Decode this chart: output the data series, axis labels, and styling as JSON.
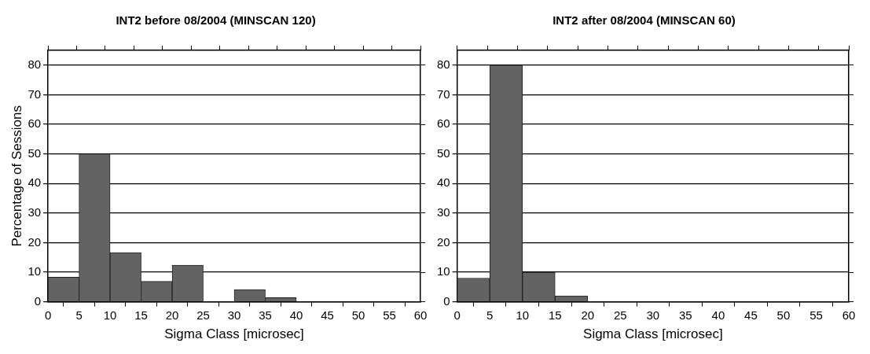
{
  "chart_data": [
    {
      "type": "histogram",
      "title": "INT2 before 08/2004 (MINSCAN 120)",
      "xlabel": "Sigma Class [microsec]",
      "ylabel": "Percentage of Sessions",
      "bins": [
        0,
        5,
        10,
        15,
        20,
        25,
        30,
        35,
        40,
        45,
        50,
        55,
        60
      ],
      "values": [
        8.3,
        50,
        16.6,
        6.9,
        12.4,
        0,
        4.1,
        1.4,
        0,
        0,
        0,
        0
      ],
      "color": "#636363",
      "xlim": [
        0,
        60
      ],
      "xticks": [
        0,
        5,
        10,
        15,
        20,
        25,
        30,
        35,
        40,
        45,
        50,
        55,
        60
      ],
      "ylim": [
        0,
        85
      ],
      "yticks": [
        0,
        10,
        20,
        30,
        40,
        50,
        60,
        70,
        80
      ],
      "grid": "y",
      "legend": false
    },
    {
      "type": "histogram",
      "title": "INT2 after 08/2004 (MINSCAN 60)",
      "xlabel": "Sigma Class [microsec]",
      "bins": [
        0,
        5,
        10,
        15,
        20,
        25,
        30,
        35,
        40,
        45,
        50,
        55,
        60
      ],
      "values": [
        8,
        80,
        10,
        2,
        0,
        0,
        0,
        0,
        0,
        0,
        0,
        0
      ],
      "color": "#636363",
      "xlim": [
        0,
        60
      ],
      "xticks": [
        0,
        5,
        10,
        15,
        20,
        25,
        30,
        35,
        40,
        45,
        50,
        55,
        60
      ],
      "ylim": [
        0,
        85
      ],
      "yticks": [
        0,
        10,
        20,
        30,
        40,
        50,
        60,
        70,
        80
      ],
      "grid": "y",
      "legend": false
    }
  ]
}
